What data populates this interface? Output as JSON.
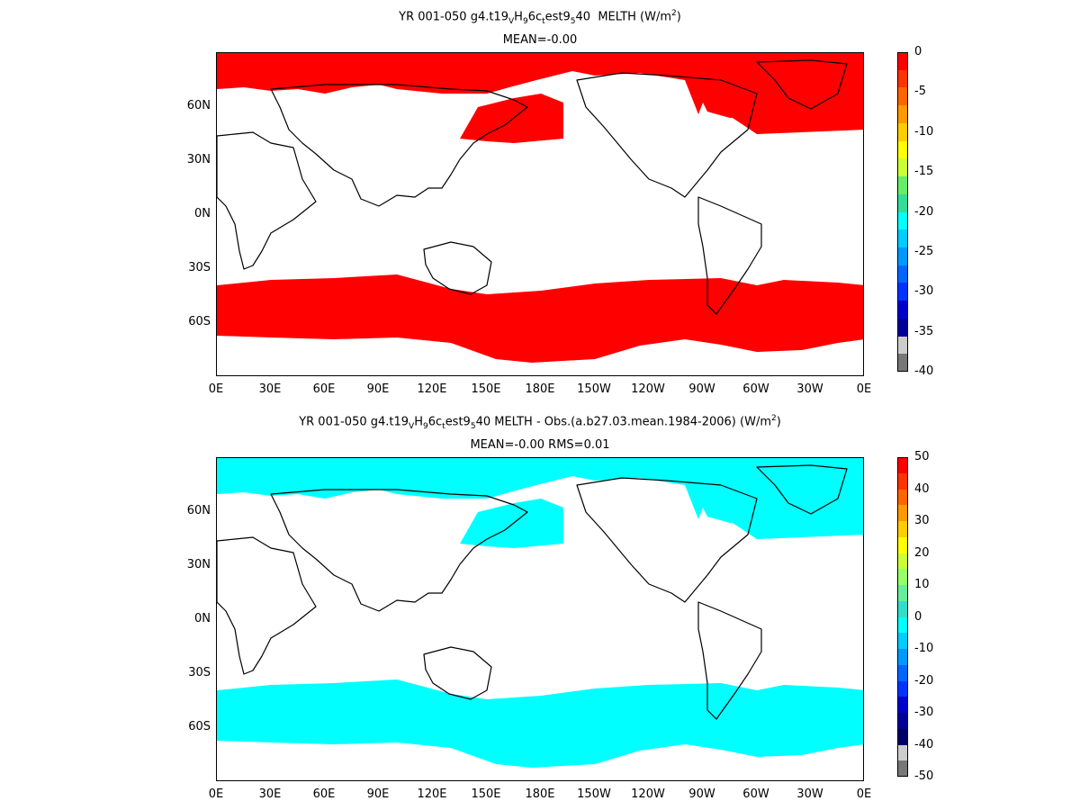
{
  "panels": [
    {
      "title_html": "YR 001-050 g4.t19<sub>V</sub>H<sub>9</sub>6c<sub>t</sub>est9<sub>5</sub>40&nbsp; MELTH (W/m<sup>2</sup>)",
      "subtitle": "MEAN=-0.00",
      "fill_color": "#ff0000",
      "lat_labels": [
        "60N",
        "30N",
        "0N",
        "30S",
        "60S"
      ],
      "lon_labels": [
        "0E",
        "30E",
        "60E",
        "90E",
        "120E",
        "150E",
        "180E",
        "150W",
        "120W",
        "90W",
        "60W",
        "30W",
        "0E"
      ],
      "colorbar": {
        "labels": [
          "0",
          "-5",
          "-10",
          "-15",
          "-20",
          "-25",
          "-30",
          "-35",
          "-40"
        ],
        "colors": [
          "#ff0000",
          "#ff3300",
          "#ff6600",
          "#ff9900",
          "#ffcc00",
          "#ffff00",
          "#ccff33",
          "#66ee66",
          "#33dd99",
          "#00ffff",
          "#00ccff",
          "#0099ff",
          "#0066ff",
          "#0033ff",
          "#0000cc",
          "#000099",
          "#cccccc",
          "#777777"
        ]
      }
    },
    {
      "title_html": "YR 001-050 g4.t19<sub>V</sub>H<sub>9</sub>6c<sub>t</sub>est9<sub>5</sub>40 MELTH - Obs.(a.b27.03.mean.1984-2006) (W/m<sup>2</sup>)",
      "subtitle": "MEAN=-0.00 RMS=0.01",
      "fill_color": "#00ffff",
      "lat_labels": [
        "60N",
        "30N",
        "0N",
        "30S",
        "60S"
      ],
      "lon_labels": [
        "0E",
        "30E",
        "60E",
        "90E",
        "120E",
        "150E",
        "180E",
        "150W",
        "120W",
        "90W",
        "60W",
        "30W",
        "0E"
      ],
      "colorbar": {
        "labels": [
          "50",
          "40",
          "30",
          "20",
          "10",
          "0",
          "-10",
          "-20",
          "-30",
          "-40",
          "-50"
        ],
        "colors": [
          "#ff0000",
          "#ff3300",
          "#ff6600",
          "#ff9900",
          "#ffcc00",
          "#ffff00",
          "#ccff33",
          "#99ff66",
          "#66ee99",
          "#33ddcc",
          "#00ffff",
          "#00ccff",
          "#0099ff",
          "#0066ff",
          "#0033ff",
          "#0000cc",
          "#000099",
          "#000066",
          "#cccccc",
          "#777777"
        ]
      }
    }
  ]
}
